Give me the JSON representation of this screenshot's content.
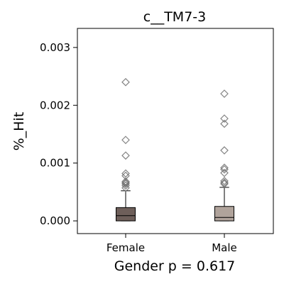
{
  "chart_data": {
    "type": "box",
    "title": "c__TM7-3",
    "xlabel": "Gender p = 0.617",
    "ylabel": "%_Hit",
    "ylim": [
      -0.00022,
      0.00333
    ],
    "yticks": [
      "0.000",
      "0.001",
      "0.002",
      "0.003"
    ],
    "ytick_values": [
      0.0,
      0.001,
      0.002,
      0.003
    ],
    "categories": [
      "Female",
      "Male"
    ],
    "colors": {
      "Female": "#6e5f5a",
      "Male": "#b0a39b",
      "outlier": "#6f6f6f",
      "axes": "#000000"
    },
    "boxes": [
      {
        "name": "Female",
        "whisker_low": 0.0,
        "q1": 0.0,
        "median": 9e-05,
        "q3": 0.00023,
        "whisker_high": 0.00052,
        "outliers": [
          0.0024,
          0.0014,
          0.00113,
          0.00082,
          0.00078,
          0.00068,
          0.00066,
          0.00064,
          0.00061,
          0.00057
        ]
      },
      {
        "name": "Male",
        "whisker_low": 0.0,
        "q1": 0.0,
        "median": 6e-05,
        "q3": 0.00025,
        "whisker_high": 0.00058,
        "outliers": [
          0.0022,
          0.00177,
          0.00168,
          0.00122,
          0.00092,
          0.00089,
          0.00083,
          0.00069,
          0.00066,
          0.00064
        ]
      }
    ]
  }
}
